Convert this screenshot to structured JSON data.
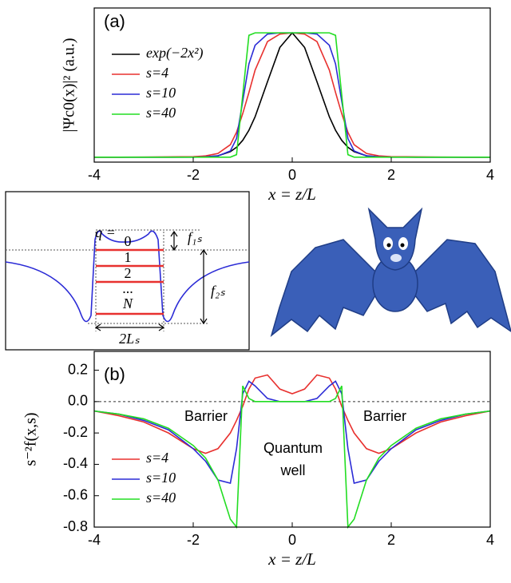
{
  "chart_data": [
    {
      "type": "line",
      "panel_label": "(a)",
      "ylabel": "|Ψc0(x)|² (a.u.)",
      "xlabel": "x = z/L",
      "xlim": [
        -4,
        4
      ],
      "xticks": [
        -4,
        -2,
        0,
        2,
        4
      ],
      "ylim": [
        -0.04,
        1.2
      ],
      "legend": "upper left",
      "x": [
        -4,
        -3.5,
        -3,
        -2.5,
        -2,
        -1.75,
        -1.5,
        -1.25,
        -1.125,
        -1,
        -0.875,
        -0.75,
        -0.5,
        -0.25,
        0,
        0.25,
        0.5,
        0.75,
        0.875,
        1,
        1.125,
        1.25,
        1.5,
        1.75,
        2,
        2.5,
        3,
        3.5,
        4
      ],
      "series": [
        {
          "name": "exp(−2x²)",
          "color": "#000000",
          "values": [
            0,
            0,
            0,
            0,
            0.0003,
            0.0022,
            0.0111,
            0.0439,
            0.0796,
            0.1353,
            0.2163,
            0.3247,
            0.6065,
            0.8825,
            1,
            0.8825,
            0.6065,
            0.3247,
            0.2163,
            0.1353,
            0.0796,
            0.0439,
            0.0111,
            0.0022,
            0.0003,
            0,
            0,
            0,
            0
          ]
        },
        {
          "name": "s=4",
          "color": "#e8312f",
          "values": [
            0,
            0,
            0.001,
            0.002,
            0.004,
            0.01,
            0.03,
            0.1,
            0.2,
            0.35,
            0.52,
            0.7,
            0.93,
            0.99,
            1,
            0.99,
            0.93,
            0.7,
            0.52,
            0.35,
            0.2,
            0.1,
            0.03,
            0.01,
            0.004,
            0.002,
            0.001,
            0,
            0
          ]
        },
        {
          "name": "s=10",
          "color": "#2b2bd6",
          "values": [
            0,
            0,
            0,
            0,
            0,
            0.002,
            0.01,
            0.05,
            0.15,
            0.45,
            0.75,
            0.9,
            0.99,
            1,
            1,
            1,
            0.99,
            0.9,
            0.75,
            0.45,
            0.15,
            0.05,
            0.01,
            0.002,
            0,
            0,
            0,
            0,
            0
          ]
        },
        {
          "name": "s=40",
          "color": "#22dd22",
          "values": [
            0,
            0,
            0,
            0,
            0,
            0,
            0,
            0,
            0.02,
            0.5,
            0.98,
            1,
            1,
            1,
            1,
            1,
            1,
            1,
            0.98,
            0.5,
            0.02,
            0,
            0,
            0,
            0,
            0,
            0,
            0,
            0
          ]
        }
      ]
    },
    {
      "type": "line",
      "panel_label": "(b)",
      "ylabel": "s⁻²f(x,s)",
      "xlabel": "x = z/L",
      "xlim": [
        -4,
        4
      ],
      "xticks": [
        -4,
        -2,
        0,
        2,
        4
      ],
      "ylim": [
        -0.8,
        0.32
      ],
      "yticks": [
        -0.8,
        -0.6,
        -0.4,
        -0.2,
        {
          "value": 0,
          "label": "0.0"
        },
        0.2
      ],
      "reference_line": 0,
      "legend": "lower left",
      "annotations": [
        "Barrier",
        "Barrier",
        "Quantum",
        "well"
      ],
      "x": [
        -4,
        -3.5,
        -3,
        -2.5,
        -2,
        -1.75,
        -1.5,
        -1.25,
        -1.125,
        -1,
        -0.875,
        -0.75,
        -0.5,
        -0.25,
        0,
        0.25,
        0.5,
        0.75,
        0.875,
        1,
        1.125,
        1.25,
        1.5,
        1.75,
        2,
        2.5,
        3,
        3.5,
        4
      ],
      "series": [
        {
          "name": "s=4",
          "color": "#e8312f",
          "values": [
            -0.06,
            -0.09,
            -0.13,
            -0.2,
            -0.3,
            -0.33,
            -0.3,
            -0.2,
            -0.12,
            -0.03,
            0.08,
            0.15,
            0.17,
            0.08,
            0.05,
            0.08,
            0.17,
            0.15,
            0.08,
            -0.03,
            -0.12,
            -0.2,
            -0.3,
            -0.33,
            -0.3,
            -0.2,
            -0.13,
            -0.09,
            -0.06
          ]
        },
        {
          "name": "s=10",
          "color": "#2b2bd6",
          "values": [
            -0.06,
            -0.08,
            -0.12,
            -0.18,
            -0.3,
            -0.38,
            -0.5,
            -0.52,
            -0.3,
            0.05,
            0.13,
            0.1,
            0.02,
            0,
            0,
            0,
            0.02,
            0.1,
            0.13,
            0.05,
            -0.3,
            -0.52,
            -0.5,
            -0.38,
            -0.3,
            -0.18,
            -0.12,
            -0.08,
            -0.06
          ]
        },
        {
          "name": "s=40",
          "color": "#22dd22",
          "values": [
            -0.06,
            -0.08,
            -0.11,
            -0.17,
            -0.28,
            -0.36,
            -0.5,
            -0.75,
            -0.8,
            0.1,
            0.02,
            0,
            0,
            0,
            0,
            0,
            0,
            0,
            0.02,
            0.1,
            -0.8,
            -0.75,
            -0.5,
            -0.36,
            -0.28,
            -0.17,
            -0.11,
            -0.08,
            -0.06
          ]
        }
      ]
    }
  ],
  "inset": {
    "q_label": "q =",
    "levels": [
      "0",
      "1",
      "2",
      "...",
      "N"
    ],
    "f1s": "f₁ₛ",
    "f2s": "f₂ₛ",
    "width_label": "2Lₛ"
  }
}
